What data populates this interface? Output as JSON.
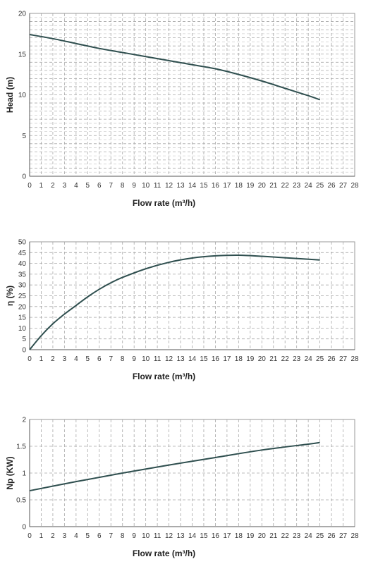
{
  "chart_data": [
    {
      "type": "line",
      "xlabel": "Flow rate (m³/h)",
      "ylabel": "Head (m)",
      "xlim": [
        0,
        28
      ],
      "ylim": [
        0,
        20
      ],
      "xticks": [
        0,
        1,
        2,
        3,
        4,
        5,
        6,
        7,
        8,
        9,
        10,
        11,
        12,
        13,
        14,
        15,
        16,
        17,
        18,
        19,
        20,
        21,
        22,
        23,
        24,
        25,
        26,
        27,
        28
      ],
      "yticks": [
        0,
        5,
        10,
        15,
        20
      ],
      "yminor": 1,
      "grid": true,
      "color": "#2f4f4f",
      "series": [
        {
          "x": [
            0,
            2,
            4,
            6,
            8,
            10,
            12,
            14,
            16,
            18,
            20,
            22,
            24,
            25
          ],
          "values": [
            17.4,
            16.9,
            16.3,
            15.7,
            15.2,
            14.7,
            14.2,
            13.7,
            13.2,
            12.5,
            11.7,
            10.8,
            9.9,
            9.4
          ]
        }
      ]
    },
    {
      "type": "line",
      "xlabel": "Flow rate (m³/h)",
      "ylabel": "η (%)",
      "xlim": [
        0,
        28
      ],
      "ylim": [
        0,
        50
      ],
      "xticks": [
        0,
        1,
        2,
        3,
        4,
        5,
        6,
        7,
        8,
        9,
        10,
        11,
        12,
        13,
        14,
        15,
        16,
        17,
        18,
        19,
        20,
        21,
        22,
        23,
        24,
        25,
        26,
        27,
        28
      ],
      "yticks": [
        0,
        5,
        10,
        15,
        20,
        25,
        30,
        35,
        40,
        45,
        50
      ],
      "yminor": 5,
      "grid": true,
      "color": "#2f4f4f",
      "series": [
        {
          "x": [
            0,
            1,
            2,
            3,
            4,
            5,
            6,
            7,
            8,
            10,
            12,
            14,
            16,
            18,
            20,
            22,
            25
          ],
          "values": [
            0,
            6.5,
            12,
            16.5,
            20.5,
            24.5,
            28,
            31,
            33.5,
            37.5,
            40.5,
            42.5,
            43.5,
            43.8,
            43.3,
            42.6,
            41.6
          ]
        }
      ]
    },
    {
      "type": "line",
      "xlabel": "Flow rate (m³/h)",
      "ylabel": "Np (KW)",
      "xlim": [
        0,
        28
      ],
      "ylim": [
        0,
        2
      ],
      "xticks": [
        0,
        1,
        2,
        3,
        4,
        5,
        6,
        7,
        8,
        9,
        10,
        11,
        12,
        13,
        14,
        15,
        16,
        17,
        18,
        19,
        20,
        21,
        22,
        23,
        24,
        25,
        26,
        27,
        28
      ],
      "yticks": [
        0,
        0.5,
        1,
        1.5,
        2
      ],
      "yminor": 0.5,
      "grid": true,
      "color": "#2f4f4f",
      "series": [
        {
          "x": [
            0,
            4,
            8,
            12,
            16,
            20,
            24,
            25
          ],
          "values": [
            0.67,
            0.84,
            1.0,
            1.15,
            1.29,
            1.43,
            1.54,
            1.57
          ]
        }
      ]
    }
  ]
}
